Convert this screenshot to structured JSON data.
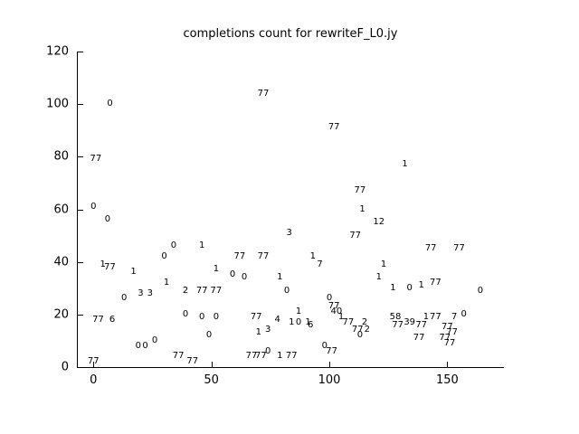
{
  "chart_data": {
    "type": "scatter",
    "marker": "text-label",
    "title": "completions count for rewriteF_L0.jy",
    "xlabel": "",
    "ylabel": "",
    "xlim": [
      -7,
      174
    ],
    "ylim": [
      0,
      120
    ],
    "x_ticks": [
      0,
      50,
      100,
      150
    ],
    "y_ticks": [
      0,
      20,
      40,
      60,
      80,
      100,
      120
    ],
    "grid": false,
    "legend": "none",
    "points": [
      {
        "x": 7,
        "y": 100,
        "label": "0"
      },
      {
        "x": 72,
        "y": 104,
        "label": "77"
      },
      {
        "x": 102,
        "y": 91,
        "label": "77"
      },
      {
        "x": 132,
        "y": 77,
        "label": "1"
      },
      {
        "x": 1,
        "y": 79,
        "label": "77"
      },
      {
        "x": 0,
        "y": 61,
        "label": "0"
      },
      {
        "x": 6,
        "y": 56,
        "label": "0"
      },
      {
        "x": 113,
        "y": 67,
        "label": "77"
      },
      {
        "x": 114,
        "y": 60,
        "label": "1"
      },
      {
        "x": 121,
        "y": 55,
        "label": "12"
      },
      {
        "x": 111,
        "y": 50,
        "label": "77"
      },
      {
        "x": 83,
        "y": 51,
        "label": "3"
      },
      {
        "x": 34,
        "y": 46,
        "label": "0"
      },
      {
        "x": 46,
        "y": 46,
        "label": "1"
      },
      {
        "x": 143,
        "y": 45,
        "label": "77"
      },
      {
        "x": 155,
        "y": 45,
        "label": "77"
      },
      {
        "x": 30,
        "y": 42,
        "label": "0"
      },
      {
        "x": 62,
        "y": 42,
        "label": "77"
      },
      {
        "x": 72,
        "y": 42,
        "label": "77"
      },
      {
        "x": 93,
        "y": 42,
        "label": "1"
      },
      {
        "x": 96,
        "y": 39,
        "label": "7"
      },
      {
        "x": 4,
        "y": 39,
        "label": "1"
      },
      {
        "x": 7,
        "y": 38,
        "label": "77"
      },
      {
        "x": 123,
        "y": 39,
        "label": "1"
      },
      {
        "x": 17,
        "y": 36,
        "label": "1"
      },
      {
        "x": 52,
        "y": 37,
        "label": "1"
      },
      {
        "x": 59,
        "y": 35,
        "label": "0"
      },
      {
        "x": 64,
        "y": 34,
        "label": "0"
      },
      {
        "x": 79,
        "y": 34,
        "label": "1"
      },
      {
        "x": 121,
        "y": 34,
        "label": "1"
      },
      {
        "x": 31,
        "y": 32,
        "label": "1"
      },
      {
        "x": 20,
        "y": 28,
        "label": "3"
      },
      {
        "x": 24,
        "y": 28,
        "label": "3"
      },
      {
        "x": 39,
        "y": 29,
        "label": "2"
      },
      {
        "x": 46,
        "y": 29,
        "label": "77"
      },
      {
        "x": 52,
        "y": 29,
        "label": "77"
      },
      {
        "x": 82,
        "y": 29,
        "label": "0"
      },
      {
        "x": 127,
        "y": 30,
        "label": "1"
      },
      {
        "x": 134,
        "y": 30,
        "label": "0"
      },
      {
        "x": 139,
        "y": 31,
        "label": "1"
      },
      {
        "x": 145,
        "y": 32,
        "label": "77"
      },
      {
        "x": 164,
        "y": 29,
        "label": "0"
      },
      {
        "x": 13,
        "y": 26,
        "label": "0"
      },
      {
        "x": 100,
        "y": 26,
        "label": "0"
      },
      {
        "x": 102,
        "y": 23,
        "label": "77"
      },
      {
        "x": 103,
        "y": 21,
        "label": "40"
      },
      {
        "x": 105,
        "y": 19,
        "label": "1"
      },
      {
        "x": 2,
        "y": 18,
        "label": "77"
      },
      {
        "x": 8,
        "y": 18,
        "label": "6"
      },
      {
        "x": 39,
        "y": 20,
        "label": "0"
      },
      {
        "x": 46,
        "y": 19,
        "label": "0"
      },
      {
        "x": 52,
        "y": 19,
        "label": "0"
      },
      {
        "x": 69,
        "y": 19,
        "label": "77"
      },
      {
        "x": 78,
        "y": 18,
        "label": "4"
      },
      {
        "x": 87,
        "y": 21,
        "label": "1"
      },
      {
        "x": 84,
        "y": 17,
        "label": "1"
      },
      {
        "x": 87,
        "y": 17,
        "label": "0"
      },
      {
        "x": 91,
        "y": 17,
        "label": "1"
      },
      {
        "x": 92,
        "y": 16,
        "label": "6"
      },
      {
        "x": 108,
        "y": 17,
        "label": "77"
      },
      {
        "x": 115,
        "y": 17,
        "label": "2"
      },
      {
        "x": 112,
        "y": 14,
        "label": "77"
      },
      {
        "x": 116,
        "y": 14,
        "label": "2"
      },
      {
        "x": 113,
        "y": 12,
        "label": "0"
      },
      {
        "x": 70,
        "y": 13,
        "label": "1"
      },
      {
        "x": 74,
        "y": 14,
        "label": "3"
      },
      {
        "x": 26,
        "y": 10,
        "label": "0"
      },
      {
        "x": 19,
        "y": 8,
        "label": "0"
      },
      {
        "x": 22,
        "y": 8,
        "label": "0"
      },
      {
        "x": 49,
        "y": 12,
        "label": "0"
      },
      {
        "x": 36,
        "y": 4,
        "label": "77"
      },
      {
        "x": 42,
        "y": 2,
        "label": "77"
      },
      {
        "x": 67,
        "y": 4,
        "label": "77"
      },
      {
        "x": 71,
        "y": 4,
        "label": "77"
      },
      {
        "x": 74,
        "y": 6,
        "label": "0"
      },
      {
        "x": 79,
        "y": 4,
        "label": "1"
      },
      {
        "x": 84,
        "y": 4,
        "label": "77"
      },
      {
        "x": 0,
        "y": 2,
        "label": "77"
      },
      {
        "x": 98,
        "y": 8,
        "label": "0"
      },
      {
        "x": 101,
        "y": 6,
        "label": "77"
      },
      {
        "x": 128,
        "y": 19,
        "label": "58"
      },
      {
        "x": 134,
        "y": 17,
        "label": "39"
      },
      {
        "x": 129,
        "y": 16,
        "label": "77"
      },
      {
        "x": 141,
        "y": 19,
        "label": "1"
      },
      {
        "x": 145,
        "y": 19,
        "label": "77"
      },
      {
        "x": 139,
        "y": 16,
        "label": "77"
      },
      {
        "x": 153,
        "y": 19,
        "label": "7"
      },
      {
        "x": 157,
        "y": 20,
        "label": "0"
      },
      {
        "x": 150,
        "y": 15,
        "label": "77"
      },
      {
        "x": 152,
        "y": 13,
        "label": "77"
      },
      {
        "x": 138,
        "y": 11,
        "label": "77"
      },
      {
        "x": 149,
        "y": 11,
        "label": "77"
      },
      {
        "x": 151,
        "y": 9,
        "label": "77"
      }
    ]
  },
  "colors": {
    "background": "#ffffff",
    "axis": "#000000",
    "text": "#000000"
  }
}
